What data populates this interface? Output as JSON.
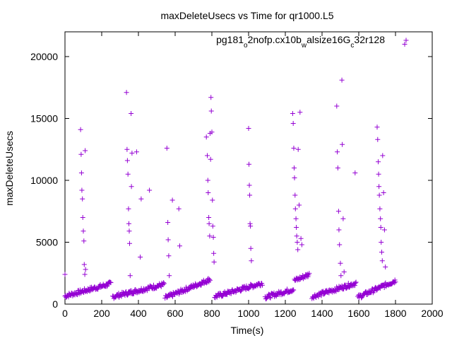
{
  "chart_data": {
    "type": "scatter",
    "title": "maxDeleteUsecs vs Time for qr1000.L5",
    "xlabel": "Time(s)",
    "ylabel": "maxDeleteUsecs",
    "xlim": [
      0,
      2000
    ],
    "ylim": [
      0,
      22000
    ],
    "xticks": [
      "0",
      "200",
      "400",
      "600",
      "800",
      "1000",
      "1200",
      "1400",
      "1600",
      "1800",
      "2000"
    ],
    "yticks": [
      "0",
      "5000",
      "10000",
      "15000",
      "20000"
    ],
    "legend": {
      "position": "top-right",
      "label": "pg181_o2nofp.cx10b_walsize16G_c32r128",
      "label_parts": [
        {
          "text": "pg181",
          "sub": false
        },
        {
          "text": "o",
          "sub": true
        },
        {
          "text": "2nofp.cx10b",
          "sub": false
        },
        {
          "text": "w",
          "sub": true
        },
        {
          "text": "alsize16G",
          "sub": false
        },
        {
          "text": "c",
          "sub": true
        },
        {
          "text": "32r128",
          "sub": false
        }
      ]
    },
    "marker": "+",
    "color": "#9400D3",
    "series": [
      {
        "name": "pg181_o2nofp.cx10b_walsize16G_c32r128",
        "baseline_segments": [
          {
            "x_start": 0,
            "x_end": 250,
            "y_start": 650,
            "y_end": 1650
          },
          {
            "x_start": 260,
            "x_end": 540,
            "y_start": 600,
            "y_end": 1600
          },
          {
            "x_start": 545,
            "x_end": 790,
            "y_start": 500,
            "y_end": 2000
          },
          {
            "x_start": 815,
            "x_end": 1075,
            "y_start": 600,
            "y_end": 1700
          },
          {
            "x_start": 1090,
            "x_end": 1245,
            "y_start": 550,
            "y_end": 1200
          },
          {
            "x_start": 1250,
            "x_end": 1330,
            "y_start": 1900,
            "y_end": 2400
          },
          {
            "x_start": 1345,
            "x_end": 1585,
            "y_start": 600,
            "y_end": 1700
          },
          {
            "x_start": 1595,
            "x_end": 1800,
            "y_start": 550,
            "y_end": 1900
          }
        ],
        "spikes": [
          {
            "x": 0,
            "y": 2400
          },
          {
            "x": 85,
            "y": 14100
          },
          {
            "x": 88,
            "y": 12100
          },
          {
            "x": 90,
            "y": 10600
          },
          {
            "x": 92,
            "y": 9200
          },
          {
            "x": 95,
            "y": 8500
          },
          {
            "x": 97,
            "y": 7000
          },
          {
            "x": 100,
            "y": 5900
          },
          {
            "x": 103,
            "y": 5100
          },
          {
            "x": 105,
            "y": 3200
          },
          {
            "x": 108,
            "y": 2400
          },
          {
            "x": 110,
            "y": 12400
          },
          {
            "x": 112,
            "y": 2800
          },
          {
            "x": 335,
            "y": 17100
          },
          {
            "x": 338,
            "y": 12500
          },
          {
            "x": 340,
            "y": 11600
          },
          {
            "x": 343,
            "y": 10500
          },
          {
            "x": 346,
            "y": 7700
          },
          {
            "x": 348,
            "y": 6500
          },
          {
            "x": 350,
            "y": 5900
          },
          {
            "x": 352,
            "y": 4900
          },
          {
            "x": 355,
            "y": 2300
          },
          {
            "x": 360,
            "y": 15400
          },
          {
            "x": 362,
            "y": 9500
          },
          {
            "x": 365,
            "y": 12200
          },
          {
            "x": 390,
            "y": 12300
          },
          {
            "x": 410,
            "y": 3800
          },
          {
            "x": 415,
            "y": 8500
          },
          {
            "x": 460,
            "y": 9200
          },
          {
            "x": 555,
            "y": 12600
          },
          {
            "x": 560,
            "y": 6600
          },
          {
            "x": 562,
            "y": 5200
          },
          {
            "x": 565,
            "y": 3900
          },
          {
            "x": 568,
            "y": 2300
          },
          {
            "x": 585,
            "y": 8400
          },
          {
            "x": 620,
            "y": 7700
          },
          {
            "x": 625,
            "y": 4700
          },
          {
            "x": 770,
            "y": 13500
          },
          {
            "x": 775,
            "y": 12000
          },
          {
            "x": 778,
            "y": 10000
          },
          {
            "x": 780,
            "y": 9000
          },
          {
            "x": 783,
            "y": 7000
          },
          {
            "x": 785,
            "y": 6500
          },
          {
            "x": 788,
            "y": 5500
          },
          {
            "x": 790,
            "y": 13800
          },
          {
            "x": 793,
            "y": 11700
          },
          {
            "x": 795,
            "y": 16700
          },
          {
            "x": 797,
            "y": 15600
          },
          {
            "x": 800,
            "y": 13900
          },
          {
            "x": 803,
            "y": 8400
          },
          {
            "x": 805,
            "y": 6300
          },
          {
            "x": 808,
            "y": 5400
          },
          {
            "x": 810,
            "y": 4100
          },
          {
            "x": 812,
            "y": 3400
          },
          {
            "x": 1000,
            "y": 14200
          },
          {
            "x": 1002,
            "y": 11300
          },
          {
            "x": 1004,
            "y": 9600
          },
          {
            "x": 1006,
            "y": 8800
          },
          {
            "x": 1008,
            "y": 6500
          },
          {
            "x": 1010,
            "y": 6300
          },
          {
            "x": 1012,
            "y": 4500
          },
          {
            "x": 1015,
            "y": 3500
          },
          {
            "x": 1240,
            "y": 15400
          },
          {
            "x": 1243,
            "y": 14600
          },
          {
            "x": 1246,
            "y": 12600
          },
          {
            "x": 1248,
            "y": 11000
          },
          {
            "x": 1250,
            "y": 10200
          },
          {
            "x": 1253,
            "y": 8800
          },
          {
            "x": 1255,
            "y": 7700
          },
          {
            "x": 1258,
            "y": 6900
          },
          {
            "x": 1260,
            "y": 6200
          },
          {
            "x": 1262,
            "y": 5500
          },
          {
            "x": 1265,
            "y": 5000
          },
          {
            "x": 1268,
            "y": 4400
          },
          {
            "x": 1270,
            "y": 12500
          },
          {
            "x": 1275,
            "y": 8000
          },
          {
            "x": 1280,
            "y": 15500
          },
          {
            "x": 1285,
            "y": 5300
          },
          {
            "x": 1290,
            "y": 4800
          },
          {
            "x": 1480,
            "y": 16000
          },
          {
            "x": 1483,
            "y": 12300
          },
          {
            "x": 1486,
            "y": 11000
          },
          {
            "x": 1490,
            "y": 7500
          },
          {
            "x": 1492,
            "y": 6000
          },
          {
            "x": 1495,
            "y": 4800
          },
          {
            "x": 1500,
            "y": 3300
          },
          {
            "x": 1503,
            "y": 2300
          },
          {
            "x": 1508,
            "y": 18100
          },
          {
            "x": 1510,
            "y": 12900
          },
          {
            "x": 1515,
            "y": 6900
          },
          {
            "x": 1520,
            "y": 2600
          },
          {
            "x": 1580,
            "y": 10600
          },
          {
            "x": 1700,
            "y": 14300
          },
          {
            "x": 1703,
            "y": 13300
          },
          {
            "x": 1706,
            "y": 11500
          },
          {
            "x": 1708,
            "y": 10500
          },
          {
            "x": 1710,
            "y": 9500
          },
          {
            "x": 1712,
            "y": 8800
          },
          {
            "x": 1715,
            "y": 7700
          },
          {
            "x": 1718,
            "y": 6900
          },
          {
            "x": 1720,
            "y": 6200
          },
          {
            "x": 1722,
            "y": 5000
          },
          {
            "x": 1725,
            "y": 4200
          },
          {
            "x": 1728,
            "y": 3500
          },
          {
            "x": 1730,
            "y": 12000
          },
          {
            "x": 1735,
            "y": 9000
          },
          {
            "x": 1740,
            "y": 6000
          },
          {
            "x": 1745,
            "y": 3000
          },
          {
            "x": 1850,
            "y": 21000
          }
        ]
      }
    ]
  }
}
